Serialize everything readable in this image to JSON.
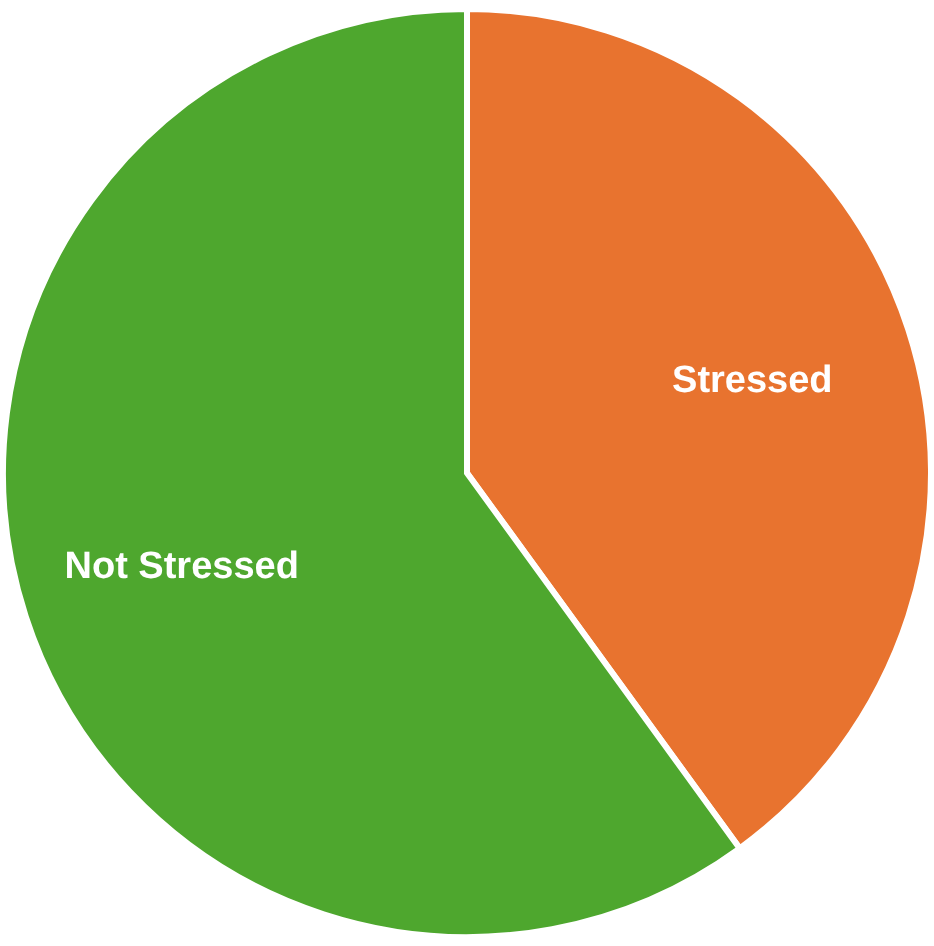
{
  "chart_data": {
    "type": "pie",
    "categories": [
      "Stressed",
      "Not Stressed"
    ],
    "values": [
      40,
      60
    ],
    "colors": [
      "#e8732f",
      "#4ea72e"
    ]
  }
}
